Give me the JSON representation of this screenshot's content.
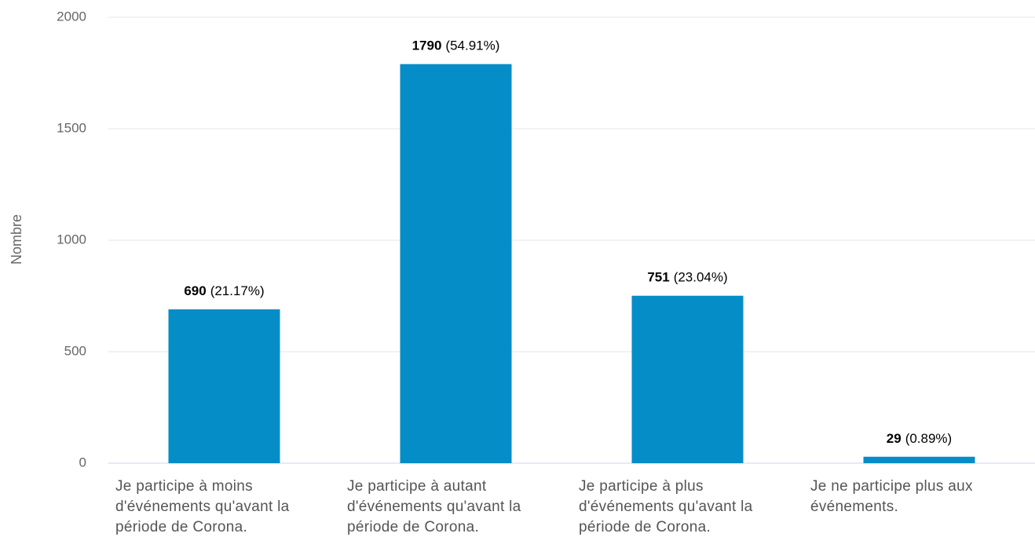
{
  "chart_data": {
    "type": "bar",
    "y_axis_label": "Nombre",
    "categories": [
      "Je participe à moins d'événements qu'avant la période de Corona.",
      "Je participe à autant d'événements qu'avant la période de Corona.",
      "Je participe à plus d'événements qu'avant la période de Corona.",
      "Je ne participe plus aux événements."
    ],
    "values": [
      690,
      1790,
      751,
      29
    ],
    "percent_labels": [
      "(21.17%)",
      "(54.91%)",
      "(23.04%)",
      "(0.89%)"
    ],
    "color": "#058dc7",
    "ylim": [
      0,
      2000
    ],
    "yticks": [
      0,
      500,
      1000,
      1500,
      2000
    ],
    "grid": true
  }
}
